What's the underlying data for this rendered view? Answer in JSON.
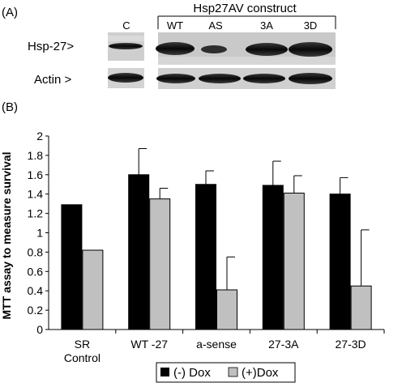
{
  "panel_a": {
    "panel_label": "(A)",
    "construct_header": "Hsp27AV construct",
    "lane_c_label": "C",
    "construct_lanes": [
      "WT",
      "AS",
      "3A",
      "3D"
    ],
    "row_labels": {
      "hsp27": "Hsp-27>",
      "actin": "Actin >"
    }
  },
  "panel_b": {
    "panel_label": "(B)"
  },
  "chart_data": {
    "type": "bar",
    "categories": [
      "SR\nControl",
      "WT -27",
      "a-sense",
      "27-3A",
      "27-3D"
    ],
    "series": [
      {
        "name": "(-) Dox",
        "color": "#000000",
        "values": [
          1.29,
          1.6,
          1.5,
          1.49,
          1.4
        ],
        "errors": [
          0,
          0.27,
          0.14,
          0.25,
          0.17
        ]
      },
      {
        "name": "(+)Dox",
        "color": "#c0c0c0",
        "values": [
          0.82,
          1.35,
          0.41,
          1.41,
          0.45
        ],
        "errors": [
          0,
          0.11,
          0.34,
          0.18,
          0.58
        ]
      }
    ],
    "ylabel": "MTT assay to measure survival",
    "xlabel": "",
    "ylim": [
      0,
      2
    ],
    "yticks": [
      "0",
      "0.2",
      "0.4",
      "0.6",
      "0.8",
      "1",
      "1.2",
      "1.4",
      "1.6",
      "1.8",
      "2"
    ],
    "grid": false,
    "legend_position": "bottom"
  }
}
